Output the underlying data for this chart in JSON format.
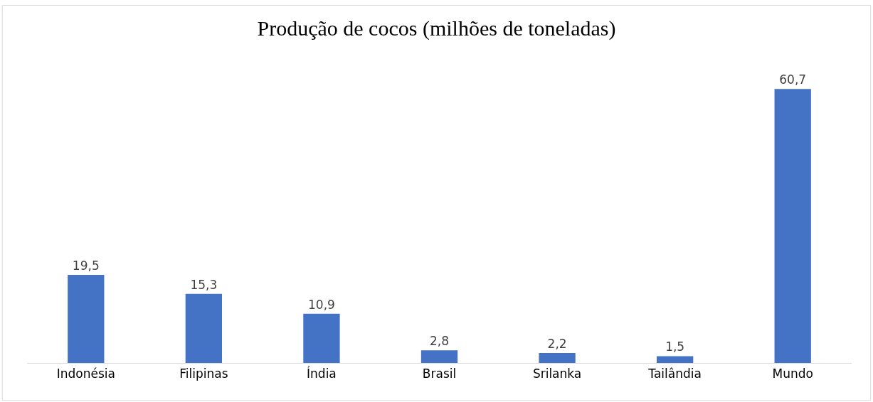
{
  "chart_data": {
    "type": "bar",
    "title": "Produção de cocos (milhões de toneladas)",
    "categories": [
      "Indonésia",
      "Filipinas",
      "Índia",
      "Brasil",
      "Srilanka",
      "Tailândia",
      "Mundo"
    ],
    "values": [
      19.5,
      15.3,
      10.9,
      2.8,
      2.2,
      1.5,
      60.7
    ],
    "value_labels": [
      "19,5",
      "15,3",
      "10,9",
      "2,8",
      "2,2",
      "1,5",
      "60,7"
    ],
    "color": "#4472c4",
    "legend": false,
    "tick_labels": "x"
  }
}
